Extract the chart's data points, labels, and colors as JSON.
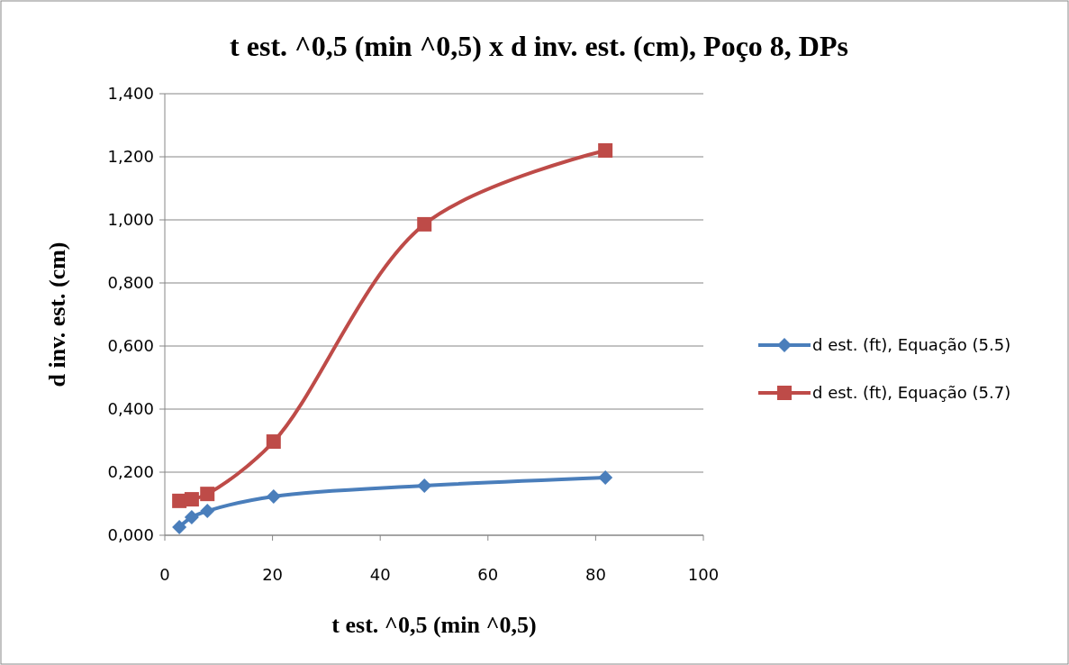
{
  "chart_data": {
    "type": "line",
    "title": "t est. ^0,5 (min ^0,5) x d inv. est. (cm), Poço 8, DPs",
    "xlabel": "t est. ^0,5 (min ^0,5)",
    "ylabel": "d inv. est. (cm)",
    "x": [
      2.7,
      5.0,
      7.9,
      20.2,
      48.2,
      81.8
    ],
    "series": [
      {
        "name": "d est. (ft), Equação (5.5)",
        "color": "#4a7ebb",
        "marker": "diamond",
        "values": [
          0.026,
          0.057,
          0.077,
          0.123,
          0.157,
          0.183
        ]
      },
      {
        "name": "d est. (ft), Equação (5.7)",
        "color": "#be4b48",
        "marker": "square",
        "values": [
          0.109,
          0.114,
          0.131,
          0.297,
          0.986,
          1.22
        ]
      }
    ],
    "xlim": [
      0,
      100
    ],
    "xticks": [
      0,
      20,
      40,
      60,
      80,
      100
    ],
    "ylim": [
      0,
      1.4
    ],
    "yticks": [
      {
        "value": 0,
        "label": "0,000"
      },
      {
        "value": 0.2,
        "label": "0,200"
      },
      {
        "value": 0.4,
        "label": "0,400"
      },
      {
        "value": 0.6,
        "label": "0,600"
      },
      {
        "value": 0.8,
        "label": "0,800"
      },
      {
        "value": 1.0,
        "label": "1,000"
      },
      {
        "value": 1.2,
        "label": "1,200"
      },
      {
        "value": 1.4,
        "label": "1,400"
      }
    ],
    "grid": "y",
    "legend": "right",
    "line_style": "solid"
  }
}
